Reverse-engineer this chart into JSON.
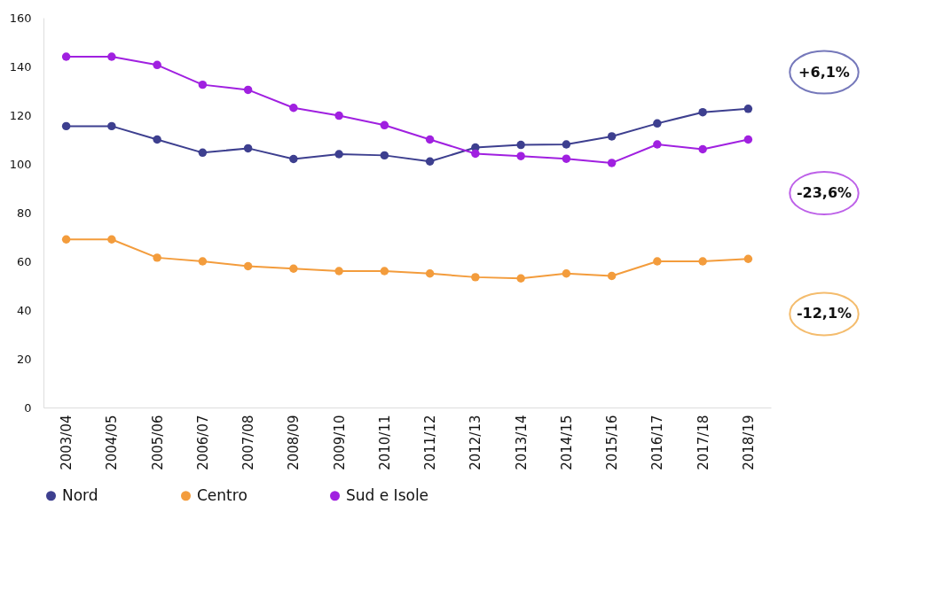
{
  "chart_data": {
    "type": "line",
    "categories": [
      "2003/04",
      "2004/05",
      "2005/06",
      "2006/07",
      "2007/08",
      "2008/09",
      "2009/10",
      "2010/11",
      "2011/12",
      "2012/13",
      "2013/14",
      "2014/15",
      "2015/16",
      "2016/17",
      "2017/18",
      "2018/19"
    ],
    "series": [
      {
        "name": "Nord",
        "color": "#3d3f8f",
        "values": [
          115.5,
          115.5,
          110,
          104.6,
          106.4,
          102,
          104,
          103.5,
          101,
          106.7,
          107.8,
          108,
          111.3,
          116.6,
          121.2,
          122.6
        ]
      },
      {
        "name": "Centro",
        "color": "#f39c3c",
        "values": [
          69,
          69,
          61.5,
          60,
          58,
          57,
          56,
          56,
          55,
          53.5,
          53,
          55,
          54,
          60,
          60,
          61
        ]
      },
      {
        "name": "Sud e Isole",
        "color": "#a020e0",
        "values": [
          144,
          144,
          140.6,
          132.5,
          130.4,
          123,
          119.8,
          115.9,
          110,
          104.2,
          103.2,
          102.1,
          100.4,
          108,
          106,
          110
        ]
      }
    ],
    "ylim": [
      0,
      160
    ],
    "yticks": [
      0,
      20,
      40,
      60,
      80,
      100,
      120,
      140,
      160
    ],
    "annotations": [
      "+6,1%",
      "-23,6%",
      "-12,1%"
    ],
    "marker": "circle",
    "legend": "bottom",
    "grid": false
  }
}
